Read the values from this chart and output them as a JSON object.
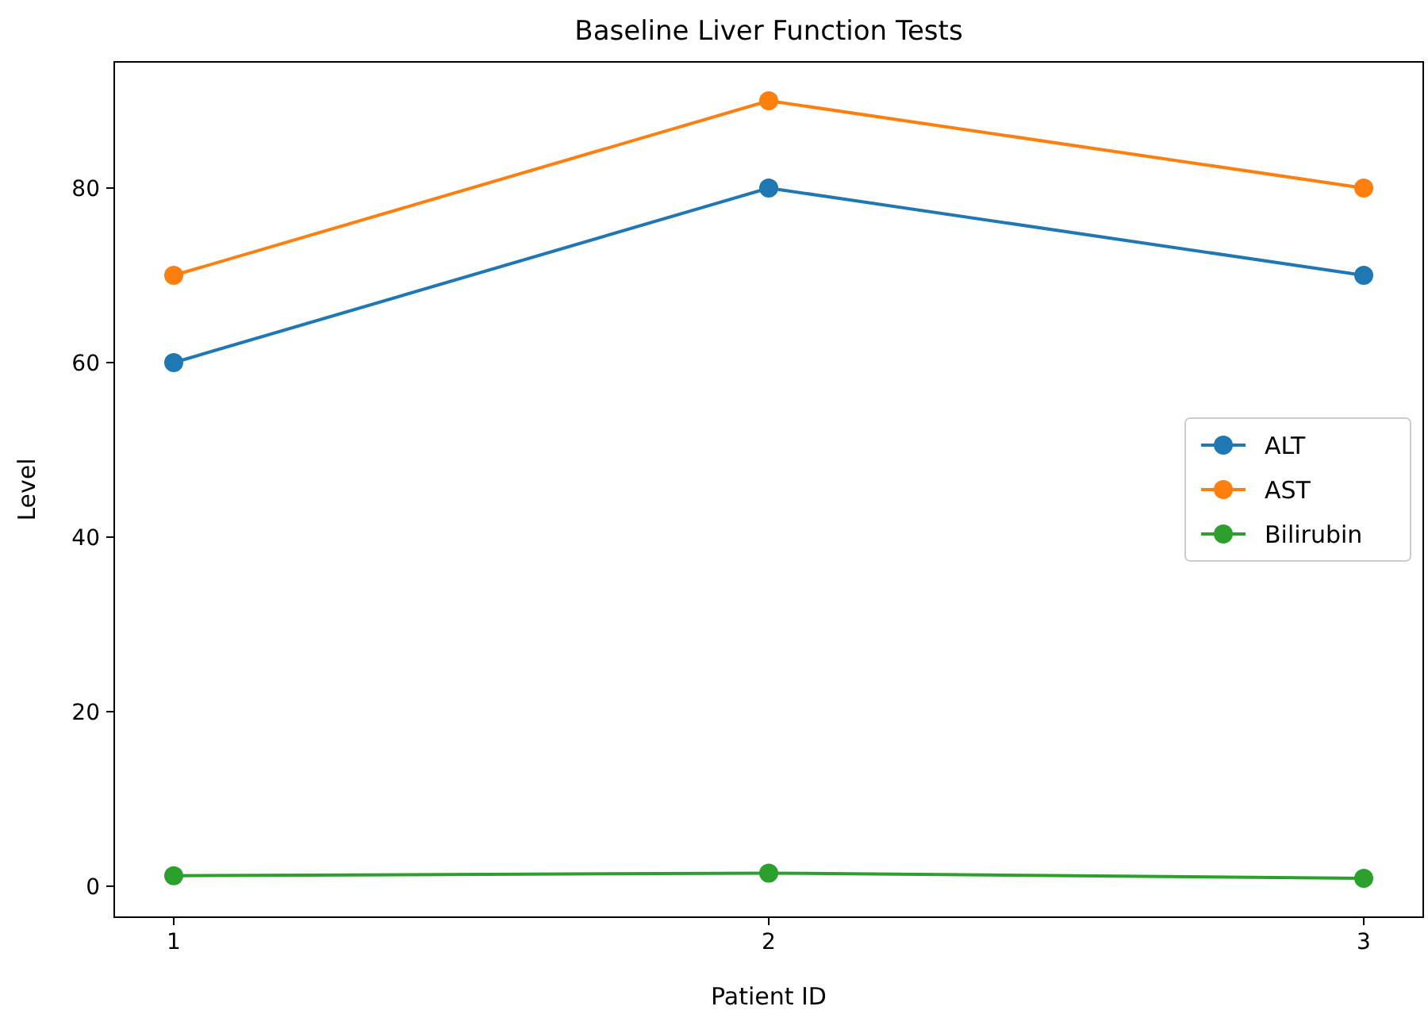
{
  "chart_data": {
    "type": "line",
    "title": "Baseline Liver Function Tests",
    "xlabel": "Patient ID",
    "ylabel": "Level",
    "x": [
      1,
      2,
      3
    ],
    "xlim": [
      0.9,
      3.1
    ],
    "xticks": [
      1,
      2,
      3
    ],
    "ylim": [
      -3.555,
      94.455
    ],
    "yticks": [
      0,
      20,
      40,
      60,
      80
    ],
    "marker": "circle",
    "legend": "right",
    "grid": false,
    "series": [
      {
        "name": "ALT",
        "color": "#1f77b4",
        "values": [
          60,
          80,
          70
        ]
      },
      {
        "name": "AST",
        "color": "#ff7f0e",
        "values": [
          70,
          90,
          80
        ]
      },
      {
        "name": "Bilirubin",
        "color": "#2ca02c",
        "values": [
          1.2,
          1.5,
          0.9
        ]
      }
    ]
  }
}
